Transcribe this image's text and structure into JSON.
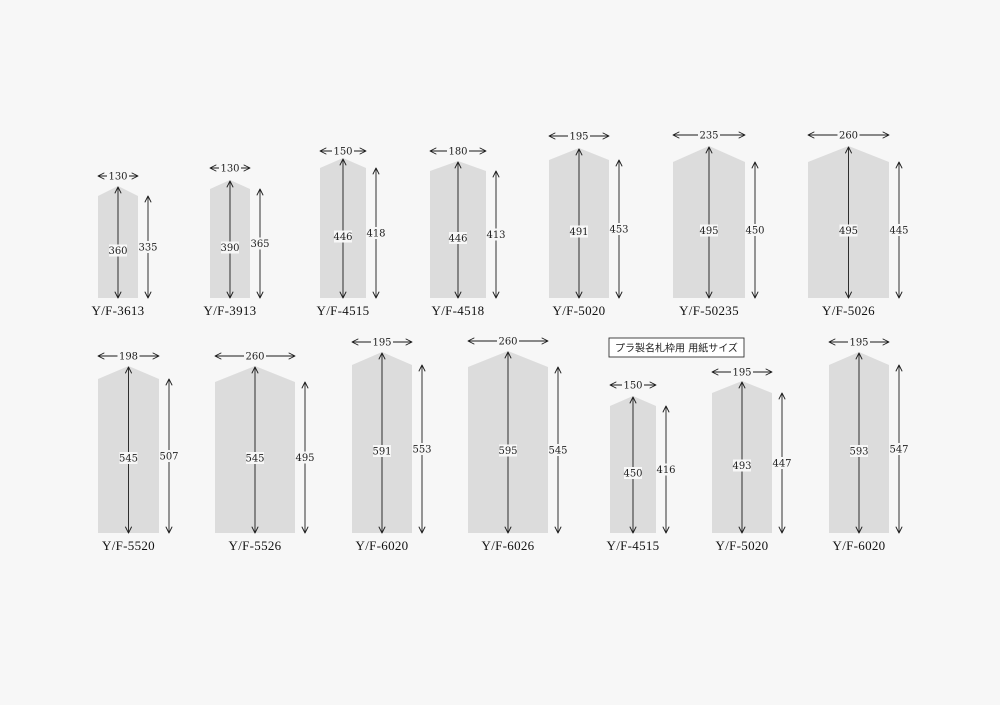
{
  "legend": "プラ製名札枠用 用紙サイズ",
  "frames": [
    {
      "model": "Y/F-3613",
      "width": "130",
      "height": "360",
      "shoulder_height": "335"
    },
    {
      "model": "Y/F-3913",
      "width": "130",
      "height": "390",
      "shoulder_height": "365"
    },
    {
      "model": "Y/F-4515",
      "width": "150",
      "height": "446",
      "shoulder_height": "418"
    },
    {
      "model": "Y/F-4518",
      "width": "180",
      "height": "446",
      "shoulder_height": "413"
    },
    {
      "model": "Y/F-5020",
      "width": "195",
      "height": "491",
      "shoulder_height": "453"
    },
    {
      "model": "Y/F-50235",
      "width": "235",
      "height": "495",
      "shoulder_height": "450"
    },
    {
      "model": "Y/F-5026",
      "width": "260",
      "height": "495",
      "shoulder_height": "445"
    },
    {
      "model": "Y/F-5520",
      "width": "198",
      "height": "545",
      "shoulder_height": "507"
    },
    {
      "model": "Y/F-5526",
      "width": "260",
      "height": "545",
      "shoulder_height": "495"
    },
    {
      "model": "Y/F-6020",
      "width": "195",
      "height": "591",
      "shoulder_height": "553"
    },
    {
      "model": "Y/F-6026",
      "width": "260",
      "height": "595",
      "shoulder_height": "545"
    },
    {
      "model": "Y/F-4515",
      "width": "150",
      "height": "450",
      "shoulder_height": "416"
    },
    {
      "model": "Y/F-5020",
      "width": "195",
      "height": "493",
      "shoulder_height": "447"
    },
    {
      "model": "Y/F-6020",
      "width": "195",
      "height": "593",
      "shoulder_height": "547"
    }
  ]
}
